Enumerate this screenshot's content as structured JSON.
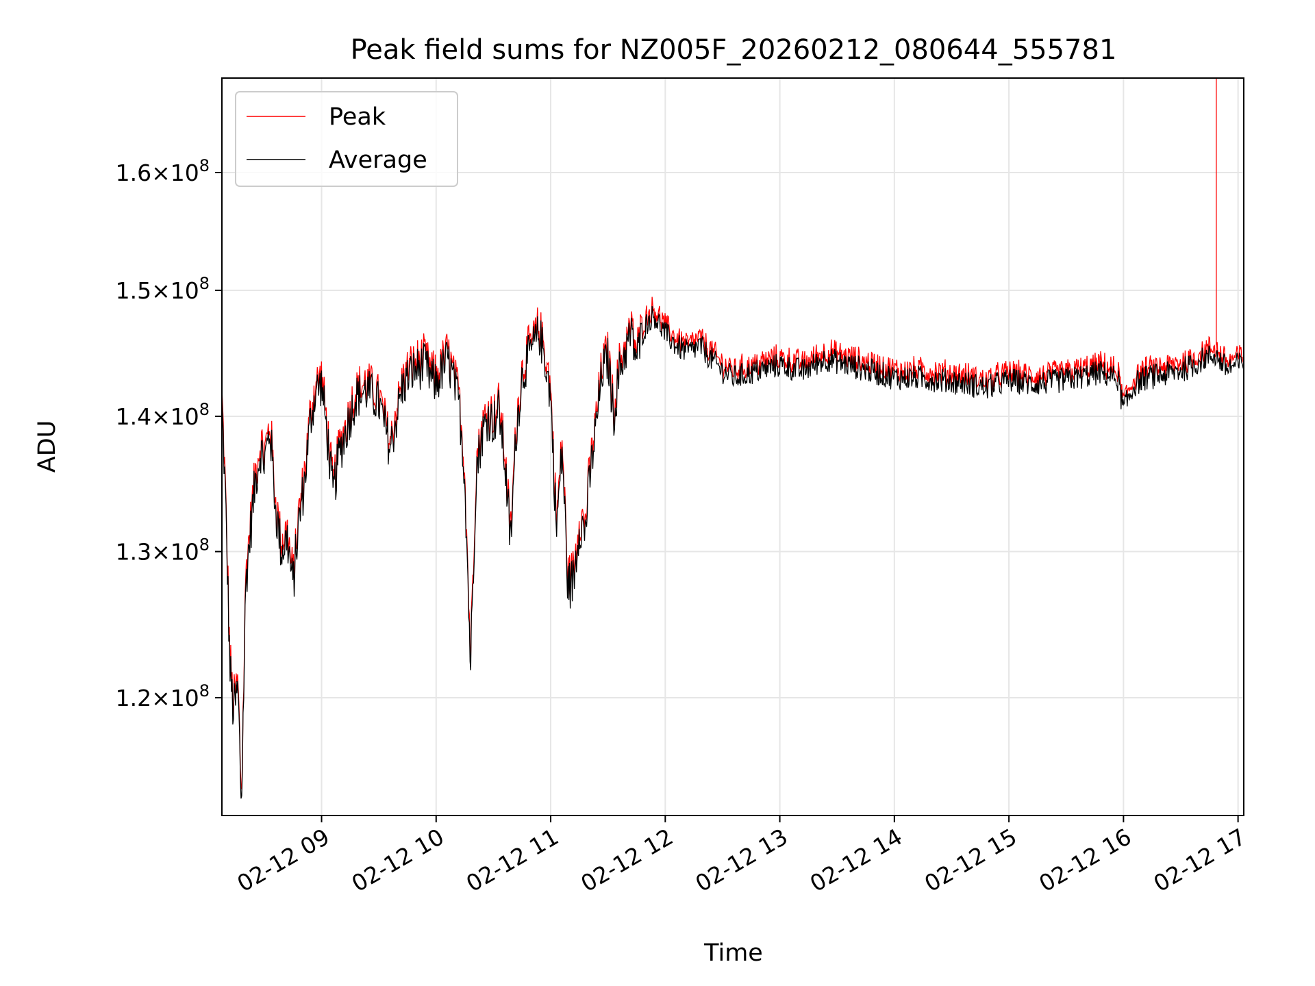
{
  "chart_data": {
    "type": "line",
    "title": "Peak field sums for NZ005F_20260212_080644_555781",
    "xlabel": "Time",
    "ylabel": "ADU",
    "x_range_hours": [
      8.13,
      17.05
    ],
    "ylim": [
      112500000,
      168500000
    ],
    "grid": true,
    "legend_position": "upper-left",
    "x_ticks": [
      {
        "hour": 9,
        "label": "02-12 09"
      },
      {
        "hour": 10,
        "label": "02-12 10"
      },
      {
        "hour": 11,
        "label": "02-12 11"
      },
      {
        "hour": 12,
        "label": "02-12 12"
      },
      {
        "hour": 13,
        "label": "02-12 13"
      },
      {
        "hour": 14,
        "label": "02-12 14"
      },
      {
        "hour": 15,
        "label": "02-12 15"
      },
      {
        "hour": 16,
        "label": "02-12 16"
      },
      {
        "hour": 17,
        "label": "02-12 17"
      }
    ],
    "y_ticks": [
      {
        "value": 120000000,
        "mantissa": "1.2",
        "exponent": "8"
      },
      {
        "value": 130000000,
        "mantissa": "1.3",
        "exponent": "8"
      },
      {
        "value": 140000000,
        "mantissa": "1.4",
        "exponent": "8"
      },
      {
        "value": 150000000,
        "mantissa": "1.5",
        "exponent": "8"
      },
      {
        "value": 160000000,
        "mantissa": "1.6",
        "exponent": "8"
      }
    ],
    "series": [
      {
        "name": "Peak",
        "color": "#ff0000",
        "offset": 400000,
        "spike": {
          "hour": 16.81,
          "value": 168500000
        }
      },
      {
        "name": "Average",
        "color": "#000000",
        "offset": 0
      }
    ],
    "baseline_average": {
      "x": [
        8.13,
        8.16,
        8.2,
        8.23,
        8.27,
        8.3,
        8.34,
        8.38,
        8.42,
        8.47,
        8.5,
        8.55,
        8.6,
        8.65,
        8.7,
        8.75,
        8.8,
        8.85,
        8.9,
        8.95,
        9.0,
        9.05,
        9.1,
        9.15,
        9.2,
        9.3,
        9.4,
        9.5,
        9.6,
        9.7,
        9.75,
        9.8,
        9.9,
        9.95,
        10.0,
        10.1,
        10.2,
        10.25,
        10.3,
        10.35,
        10.4,
        10.45,
        10.5,
        10.55,
        10.6,
        10.65,
        10.7,
        10.75,
        10.8,
        10.85,
        10.9,
        10.95,
        11.0,
        11.05,
        11.1,
        11.15,
        11.2,
        11.25,
        11.3,
        11.35,
        11.4,
        11.45,
        11.5,
        11.55,
        11.6,
        11.65,
        11.7,
        11.75,
        11.8,
        11.85,
        11.9,
        12.0,
        12.1,
        12.2,
        12.3,
        12.4,
        12.5,
        12.6,
        12.8,
        13.0,
        13.2,
        13.4,
        13.6,
        13.8,
        14.0,
        14.2,
        14.4,
        14.6,
        14.8,
        15.0,
        15.2,
        15.4,
        15.6,
        15.8,
        15.95,
        16.0,
        16.1,
        16.2,
        16.4,
        16.6,
        16.7,
        16.8,
        16.9,
        17.05
      ],
      "y": [
        141000000,
        134000000,
        122000000,
        119000000,
        120500000,
        113000000,
        128000000,
        131500000,
        135000000,
        137500000,
        136500000,
        139000000,
        133000000,
        130000000,
        131000000,
        127500000,
        132000000,
        135000000,
        139500000,
        142000000,
        142500000,
        138500000,
        134000000,
        137000000,
        138500000,
        141500000,
        142000000,
        141000000,
        137500000,
        142000000,
        143000000,
        143500000,
        144000000,
        143000000,
        142500000,
        144500000,
        141000000,
        135500000,
        122000000,
        136000000,
        138500000,
        140000000,
        139500000,
        140500000,
        136500000,
        130500000,
        139000000,
        143000000,
        144500000,
        145500000,
        146500000,
        144500000,
        141500000,
        131500000,
        137500000,
        127500000,
        128000000,
        132000000,
        131500000,
        136000000,
        139500000,
        143500000,
        144500000,
        140000000,
        143500000,
        145000000,
        146500000,
        144500000,
        146500000,
        147500000,
        148000000,
        146500000,
        145500000,
        145000000,
        145500000,
        144500000,
        143500000,
        143000000,
        143500000,
        144000000,
        143500000,
        144500000,
        144000000,
        143500000,
        143000000,
        143000000,
        142800000,
        142600000,
        142200000,
        142800000,
        142500000,
        142700000,
        143000000,
        143400000,
        142900000,
        140500000,
        142500000,
        143000000,
        143300000,
        143900000,
        144500000,
        144800000,
        143700000,
        144200000
      ]
    }
  }
}
